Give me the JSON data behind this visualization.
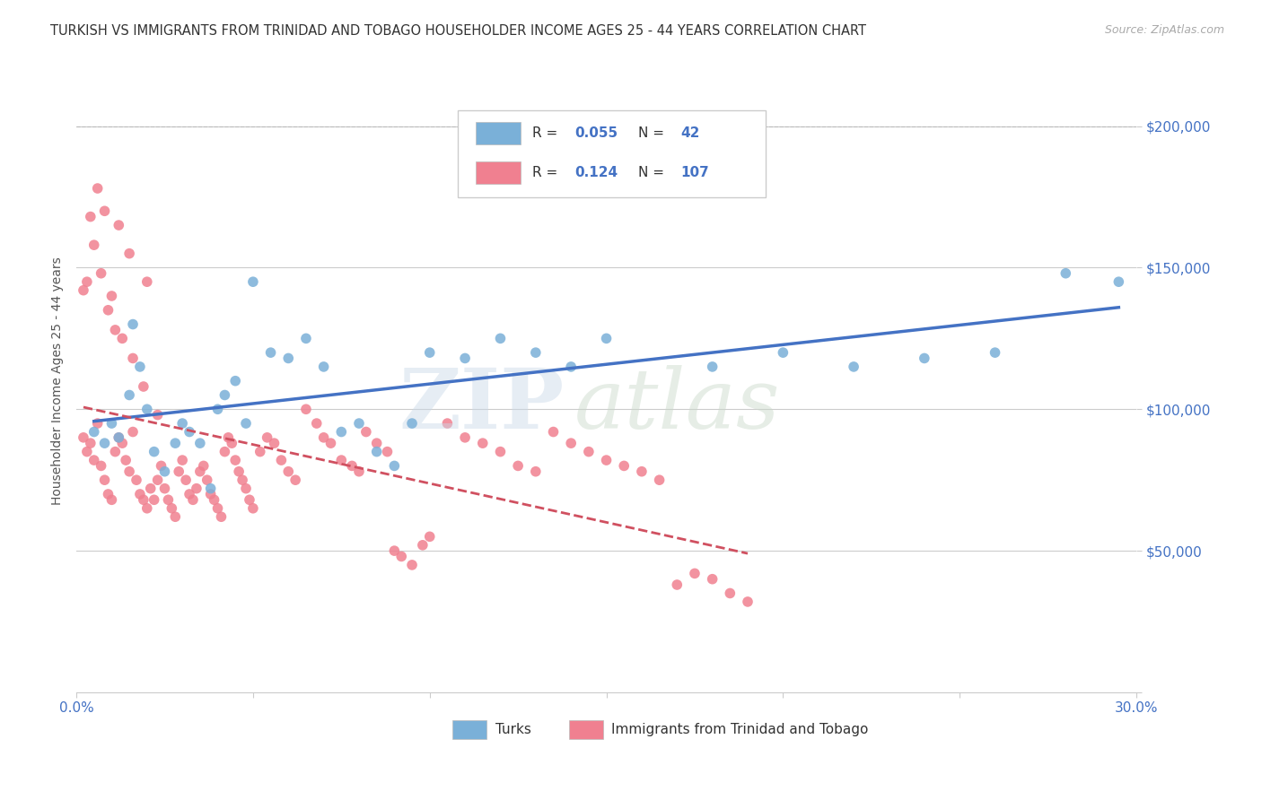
{
  "title": "TURKISH VS IMMIGRANTS FROM TRINIDAD AND TOBAGO HOUSEHOLDER INCOME AGES 25 - 44 YEARS CORRELATION CHART",
  "source": "Source: ZipAtlas.com",
  "ylabel": "Householder Income Ages 25 - 44 years",
  "xlim": [
    0.0,
    0.3
  ],
  "ylim": [
    0,
    220000
  ],
  "xticks": [
    0.0,
    0.05,
    0.1,
    0.15,
    0.2,
    0.25,
    0.3
  ],
  "xticklabels": [
    "0.0%",
    "",
    "",
    "",
    "",
    "",
    "30.0%"
  ],
  "yticks": [
    0,
    50000,
    100000,
    150000,
    200000
  ],
  "yticklabels": [
    "",
    "$50,000",
    "$100,000",
    "$150,000",
    "$200,000"
  ],
  "legend_entries": [
    {
      "r_val": "0.055",
      "n_val": "42",
      "color": "#7ab0d8"
    },
    {
      "r_val": "0.124",
      "n_val": "107",
      "color": "#f08090"
    }
  ],
  "turks_color": "#7ab0d8",
  "tt_color": "#f08090",
  "turks_line_color": "#4472c4",
  "tt_line_color": "#d05060",
  "turks_scatter": [
    [
      0.005,
      92000
    ],
    [
      0.008,
      88000
    ],
    [
      0.01,
      95000
    ],
    [
      0.012,
      90000
    ],
    [
      0.015,
      105000
    ],
    [
      0.016,
      130000
    ],
    [
      0.018,
      115000
    ],
    [
      0.02,
      100000
    ],
    [
      0.022,
      85000
    ],
    [
      0.025,
      78000
    ],
    [
      0.028,
      88000
    ],
    [
      0.03,
      95000
    ],
    [
      0.032,
      92000
    ],
    [
      0.035,
      88000
    ],
    [
      0.038,
      72000
    ],
    [
      0.04,
      100000
    ],
    [
      0.042,
      105000
    ],
    [
      0.045,
      110000
    ],
    [
      0.048,
      95000
    ],
    [
      0.05,
      145000
    ],
    [
      0.055,
      120000
    ],
    [
      0.06,
      118000
    ],
    [
      0.065,
      125000
    ],
    [
      0.07,
      115000
    ],
    [
      0.075,
      92000
    ],
    [
      0.08,
      95000
    ],
    [
      0.085,
      85000
    ],
    [
      0.09,
      80000
    ],
    [
      0.095,
      95000
    ],
    [
      0.1,
      120000
    ],
    [
      0.11,
      118000
    ],
    [
      0.12,
      125000
    ],
    [
      0.13,
      120000
    ],
    [
      0.14,
      115000
    ],
    [
      0.15,
      125000
    ],
    [
      0.18,
      115000
    ],
    [
      0.2,
      120000
    ],
    [
      0.22,
      115000
    ],
    [
      0.24,
      118000
    ],
    [
      0.26,
      120000
    ],
    [
      0.28,
      148000
    ],
    [
      0.295,
      145000
    ]
  ],
  "tt_scatter": [
    [
      0.002,
      90000
    ],
    [
      0.003,
      85000
    ],
    [
      0.004,
      88000
    ],
    [
      0.005,
      82000
    ],
    [
      0.006,
      95000
    ],
    [
      0.007,
      80000
    ],
    [
      0.008,
      75000
    ],
    [
      0.009,
      70000
    ],
    [
      0.01,
      68000
    ],
    [
      0.011,
      85000
    ],
    [
      0.012,
      90000
    ],
    [
      0.013,
      88000
    ],
    [
      0.014,
      82000
    ],
    [
      0.015,
      78000
    ],
    [
      0.016,
      92000
    ],
    [
      0.017,
      75000
    ],
    [
      0.018,
      70000
    ],
    [
      0.019,
      68000
    ],
    [
      0.02,
      65000
    ],
    [
      0.021,
      72000
    ],
    [
      0.022,
      68000
    ],
    [
      0.023,
      75000
    ],
    [
      0.024,
      80000
    ],
    [
      0.025,
      72000
    ],
    [
      0.026,
      68000
    ],
    [
      0.027,
      65000
    ],
    [
      0.028,
      62000
    ],
    [
      0.029,
      78000
    ],
    [
      0.03,
      82000
    ],
    [
      0.031,
      75000
    ],
    [
      0.032,
      70000
    ],
    [
      0.033,
      68000
    ],
    [
      0.034,
      72000
    ],
    [
      0.035,
      78000
    ],
    [
      0.036,
      80000
    ],
    [
      0.037,
      75000
    ],
    [
      0.038,
      70000
    ],
    [
      0.039,
      68000
    ],
    [
      0.04,
      65000
    ],
    [
      0.041,
      62000
    ],
    [
      0.042,
      85000
    ],
    [
      0.043,
      90000
    ],
    [
      0.044,
      88000
    ],
    [
      0.045,
      82000
    ],
    [
      0.046,
      78000
    ],
    [
      0.047,
      75000
    ],
    [
      0.048,
      72000
    ],
    [
      0.049,
      68000
    ],
    [
      0.05,
      65000
    ],
    [
      0.052,
      85000
    ],
    [
      0.054,
      90000
    ],
    [
      0.056,
      88000
    ],
    [
      0.058,
      82000
    ],
    [
      0.06,
      78000
    ],
    [
      0.062,
      75000
    ],
    [
      0.065,
      100000
    ],
    [
      0.068,
      95000
    ],
    [
      0.07,
      90000
    ],
    [
      0.072,
      88000
    ],
    [
      0.075,
      82000
    ],
    [
      0.078,
      80000
    ],
    [
      0.08,
      78000
    ],
    [
      0.082,
      92000
    ],
    [
      0.085,
      88000
    ],
    [
      0.088,
      85000
    ],
    [
      0.09,
      50000
    ],
    [
      0.092,
      48000
    ],
    [
      0.095,
      45000
    ],
    [
      0.098,
      52000
    ],
    [
      0.1,
      55000
    ],
    [
      0.105,
      95000
    ],
    [
      0.11,
      90000
    ],
    [
      0.115,
      88000
    ],
    [
      0.12,
      85000
    ],
    [
      0.125,
      80000
    ],
    [
      0.13,
      78000
    ],
    [
      0.135,
      92000
    ],
    [
      0.14,
      88000
    ],
    [
      0.145,
      85000
    ],
    [
      0.15,
      82000
    ],
    [
      0.155,
      80000
    ],
    [
      0.16,
      78000
    ],
    [
      0.165,
      75000
    ],
    [
      0.17,
      38000
    ],
    [
      0.175,
      42000
    ],
    [
      0.18,
      40000
    ],
    [
      0.185,
      35000
    ],
    [
      0.19,
      32000
    ],
    [
      0.005,
      158000
    ],
    [
      0.007,
      148000
    ],
    [
      0.01,
      140000
    ],
    [
      0.015,
      155000
    ],
    [
      0.02,
      145000
    ],
    [
      0.008,
      170000
    ],
    [
      0.012,
      165000
    ],
    [
      0.006,
      178000
    ],
    [
      0.004,
      168000
    ],
    [
      0.003,
      145000
    ],
    [
      0.002,
      142000
    ],
    [
      0.009,
      135000
    ],
    [
      0.011,
      128000
    ],
    [
      0.013,
      125000
    ],
    [
      0.016,
      118000
    ],
    [
      0.019,
      108000
    ],
    [
      0.023,
      98000
    ]
  ]
}
